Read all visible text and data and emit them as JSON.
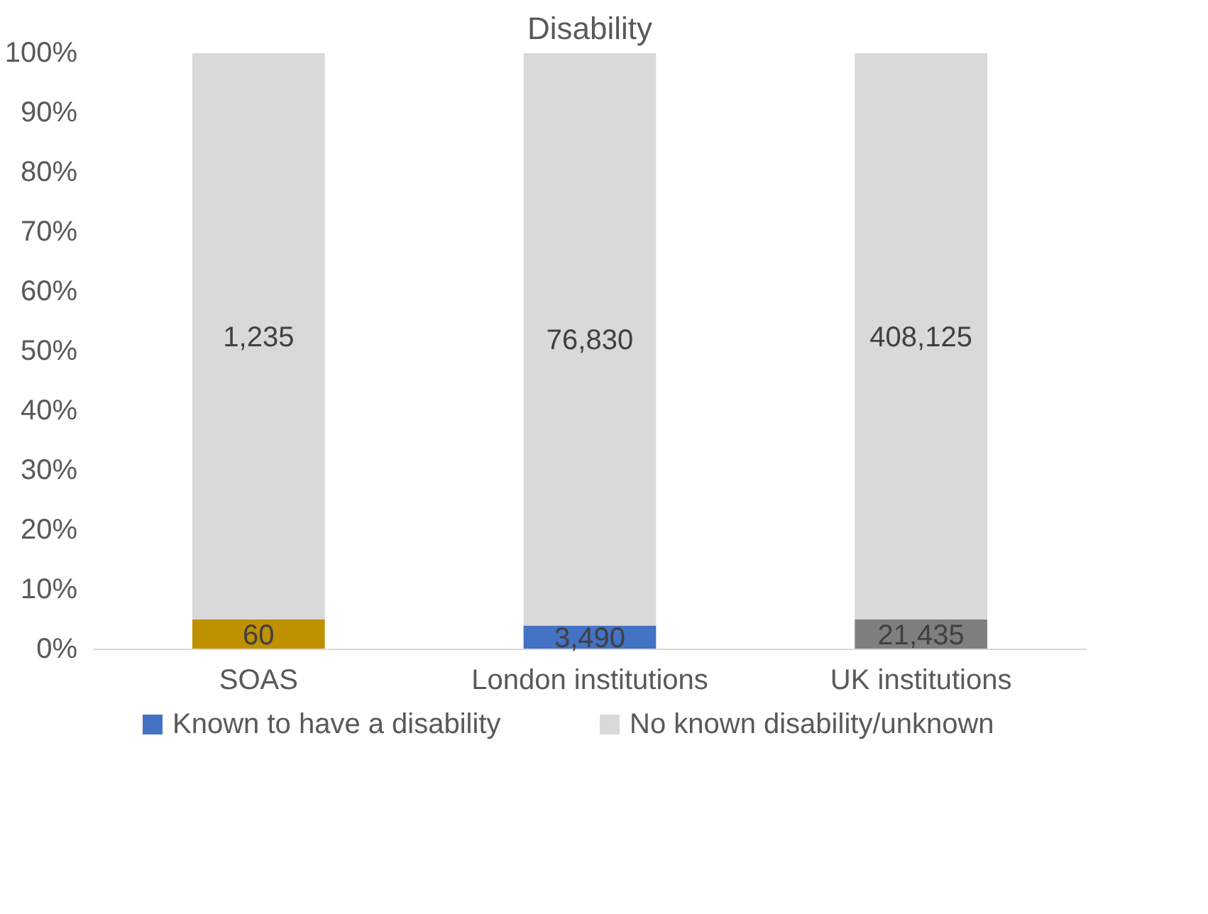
{
  "chart_data": {
    "type": "bar",
    "title": "Disability",
    "categories": [
      "SOAS",
      "London institutions",
      "UK institutions"
    ],
    "stacked": true,
    "series": [
      {
        "name": "Known to have a disability",
        "color": "#4472c4",
        "colors": [
          "#bf9000",
          "#4472c4",
          "#7f7f7f"
        ],
        "values": [
          5,
          4,
          5
        ]
      },
      {
        "name": "No known disability/unknown",
        "color": "#d9d9d9",
        "values": [
          95,
          96,
          95
        ]
      }
    ],
    "annotations": [
      "60",
      "3,490",
      "21,435",
      "1,235",
      "76,830",
      "408,125"
    ],
    "ylim": [
      0,
      100
    ],
    "yticks": [
      {
        "value": 0,
        "label": "0%"
      },
      {
        "value": 10,
        "label": "10%"
      },
      {
        "value": 20,
        "label": "20%"
      },
      {
        "value": 30,
        "label": "30%"
      },
      {
        "value": 40,
        "label": "40%"
      },
      {
        "value": 50,
        "label": "50%"
      },
      {
        "value": 60,
        "label": "60%"
      },
      {
        "value": 70,
        "label": "70%"
      },
      {
        "value": 80,
        "label": "80%"
      },
      {
        "value": 90,
        "label": "90%"
      },
      {
        "value": 100,
        "label": "100%"
      }
    ],
    "legend": "bottom"
  }
}
